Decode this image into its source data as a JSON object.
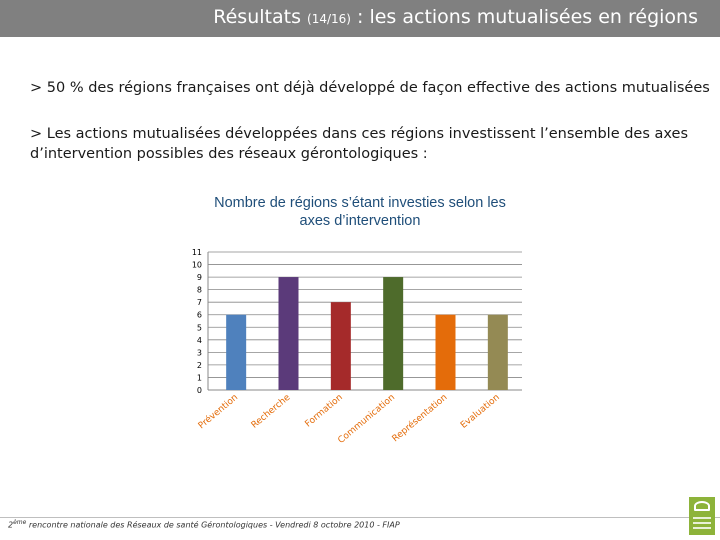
{
  "header": {
    "title_main": "Résultats ",
    "title_small": "(14/16)",
    "title_rest": " : les actions mutualisées en régions"
  },
  "bullets": {
    "b1": "> 50 % des régions françaises ont déjà développé de façon effective des actions mutualisées",
    "b2": "> Les actions mutualisées développées dans ces régions investissent l’ensemble des axes d’intervention possibles des réseaux gérontologiques :"
  },
  "chart_data": {
    "type": "bar",
    "title": "Nombre de régions s’étant investies selon les axes d’intervention",
    "categories": [
      "Prévention",
      "Recherche",
      "Formation",
      "Communication",
      "Représentation",
      "Evaluation"
    ],
    "values": [
      6,
      9,
      7,
      9,
      6,
      6
    ],
    "colors": [
      "#4f81bd",
      "#5b3a7a",
      "#a52a2a",
      "#4e6b2b",
      "#e46c0a",
      "#948a54"
    ],
    "y_ticks": [
      "0",
      "1",
      "2",
      "3",
      "4",
      "5",
      "6",
      "7",
      "8",
      "9",
      "10",
      "11"
    ],
    "ylim": [
      0,
      11
    ],
    "grid": true,
    "legend": "none"
  },
  "footer": {
    "ordinal": "2",
    "sup": "ème",
    "text": " rencontre nationale des Réseaux de santé Gérontologiques -  Vendredi 8 octobre 2010 - FIAP"
  },
  "logo": {
    "icon": "leaf-logo-icon"
  }
}
